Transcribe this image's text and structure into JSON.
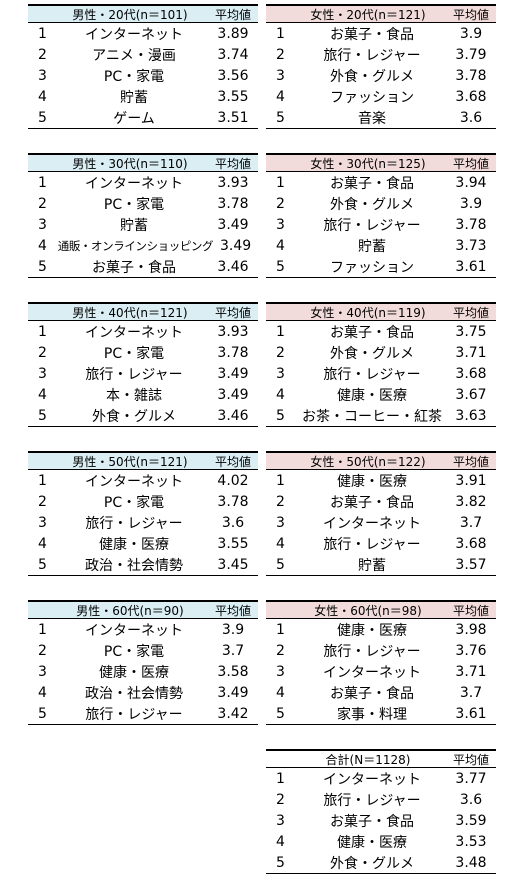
{
  "avg_label": "平均値",
  "tables": [
    {
      "id": "m20",
      "header": "男性・20代(n＝101)",
      "rows": [
        {
          "rank": "1",
          "cat": "インターネット",
          "val": "3.89"
        },
        {
          "rank": "2",
          "cat": "アニメ・漫画",
          "val": "3.74"
        },
        {
          "rank": "3",
          "cat": "PC・家電",
          "val": "3.56"
        },
        {
          "rank": "4",
          "cat": "貯蓄",
          "val": "3.55"
        },
        {
          "rank": "5",
          "cat": "ゲーム",
          "val": "3.51"
        }
      ]
    },
    {
      "id": "f20",
      "header": "女性・20代(n＝121)",
      "rows": [
        {
          "rank": "1",
          "cat": "お菓子・食品",
          "val": "3.9"
        },
        {
          "rank": "2",
          "cat": "旅行・レジャー",
          "val": "3.79"
        },
        {
          "rank": "3",
          "cat": "外食・グルメ",
          "val": "3.78"
        },
        {
          "rank": "4",
          "cat": "ファッション",
          "val": "3.68"
        },
        {
          "rank": "5",
          "cat": "音楽",
          "val": "3.6"
        }
      ]
    },
    {
      "id": "m30",
      "header": "男性・30代(n＝110)",
      "rows": [
        {
          "rank": "1",
          "cat": "インターネット",
          "val": "3.93"
        },
        {
          "rank": "2",
          "cat": "PC・家電",
          "val": "3.78"
        },
        {
          "rank": "3",
          "cat": "貯蓄",
          "val": "3.49"
        },
        {
          "rank": "4",
          "cat": "通販・オンラインショッピング",
          "val": "3.49"
        },
        {
          "rank": "5",
          "cat": "お菓子・食品",
          "val": "3.46"
        }
      ]
    },
    {
      "id": "f30",
      "header": "女性・30代(n＝125)",
      "rows": [
        {
          "rank": "1",
          "cat": "お菓子・食品",
          "val": "3.94"
        },
        {
          "rank": "2",
          "cat": "外食・グルメ",
          "val": "3.9"
        },
        {
          "rank": "3",
          "cat": "旅行・レジャー",
          "val": "3.78"
        },
        {
          "rank": "4",
          "cat": "貯蓄",
          "val": "3.73"
        },
        {
          "rank": "5",
          "cat": "ファッション",
          "val": "3.61"
        }
      ]
    },
    {
      "id": "m40",
      "header": "男性・40代(n＝121)",
      "rows": [
        {
          "rank": "1",
          "cat": "インターネット",
          "val": "3.93"
        },
        {
          "rank": "2",
          "cat": "PC・家電",
          "val": "3.78"
        },
        {
          "rank": "3",
          "cat": "旅行・レジャー",
          "val": "3.49"
        },
        {
          "rank": "4",
          "cat": "本・雑誌",
          "val": "3.49"
        },
        {
          "rank": "5",
          "cat": "外食・グルメ",
          "val": "3.46"
        }
      ]
    },
    {
      "id": "f40",
      "header": "女性・40代(n＝119)",
      "rows": [
        {
          "rank": "1",
          "cat": "お菓子・食品",
          "val": "3.75"
        },
        {
          "rank": "2",
          "cat": "外食・グルメ",
          "val": "3.71"
        },
        {
          "rank": "3",
          "cat": "旅行・レジャー",
          "val": "3.68"
        },
        {
          "rank": "4",
          "cat": "健康・医療",
          "val": "3.67"
        },
        {
          "rank": "5",
          "cat": "お茶・コーヒー・紅茶",
          "val": "3.63"
        }
      ]
    },
    {
      "id": "m50",
      "header": "男性・50代(n＝121)",
      "rows": [
        {
          "rank": "1",
          "cat": "インターネット",
          "val": "4.02"
        },
        {
          "rank": "2",
          "cat": "PC・家電",
          "val": "3.78"
        },
        {
          "rank": "3",
          "cat": "旅行・レジャー",
          "val": "3.6"
        },
        {
          "rank": "4",
          "cat": "健康・医療",
          "val": "3.55"
        },
        {
          "rank": "5",
          "cat": "政治・社会情勢",
          "val": "3.45"
        }
      ]
    },
    {
      "id": "f50",
      "header": "女性・50代(n＝122)",
      "rows": [
        {
          "rank": "1",
          "cat": "健康・医療",
          "val": "3.91"
        },
        {
          "rank": "2",
          "cat": "お菓子・食品",
          "val": "3.82"
        },
        {
          "rank": "3",
          "cat": "インターネット",
          "val": "3.7"
        },
        {
          "rank": "4",
          "cat": "旅行・レジャー",
          "val": "3.68"
        },
        {
          "rank": "5",
          "cat": "貯蓄",
          "val": "3.57"
        }
      ]
    },
    {
      "id": "m60",
      "header": "男性・60代(n＝90)",
      "rows": [
        {
          "rank": "1",
          "cat": "インターネット",
          "val": "3.9"
        },
        {
          "rank": "2",
          "cat": "PC・家電",
          "val": "3.7"
        },
        {
          "rank": "3",
          "cat": "健康・医療",
          "val": "3.58"
        },
        {
          "rank": "4",
          "cat": "政治・社会情勢",
          "val": "3.49"
        },
        {
          "rank": "5",
          "cat": "旅行・レジャー",
          "val": "3.42"
        }
      ]
    },
    {
      "id": "f60",
      "header": "女性・60代(n＝98)",
      "rows": [
        {
          "rank": "1",
          "cat": "健康・医療",
          "val": "3.98"
        },
        {
          "rank": "2",
          "cat": "旅行・レジャー",
          "val": "3.76"
        },
        {
          "rank": "3",
          "cat": "インターネット",
          "val": "3.71"
        },
        {
          "rank": "4",
          "cat": "お菓子・食品",
          "val": "3.7"
        },
        {
          "rank": "5",
          "cat": "家事・料理",
          "val": "3.61"
        }
      ]
    },
    {
      "id": "total",
      "header": "合計(N＝1128)",
      "rows": [
        {
          "rank": "1",
          "cat": "インターネット",
          "val": "3.77"
        },
        {
          "rank": "2",
          "cat": "旅行・レジャー",
          "val": "3.6"
        },
        {
          "rank": "3",
          "cat": "お菓子・食品",
          "val": "3.59"
        },
        {
          "rank": "4",
          "cat": "健康・医療",
          "val": "3.53"
        },
        {
          "rank": "5",
          "cat": "外食・グルメ",
          "val": "3.48"
        }
      ]
    }
  ]
}
